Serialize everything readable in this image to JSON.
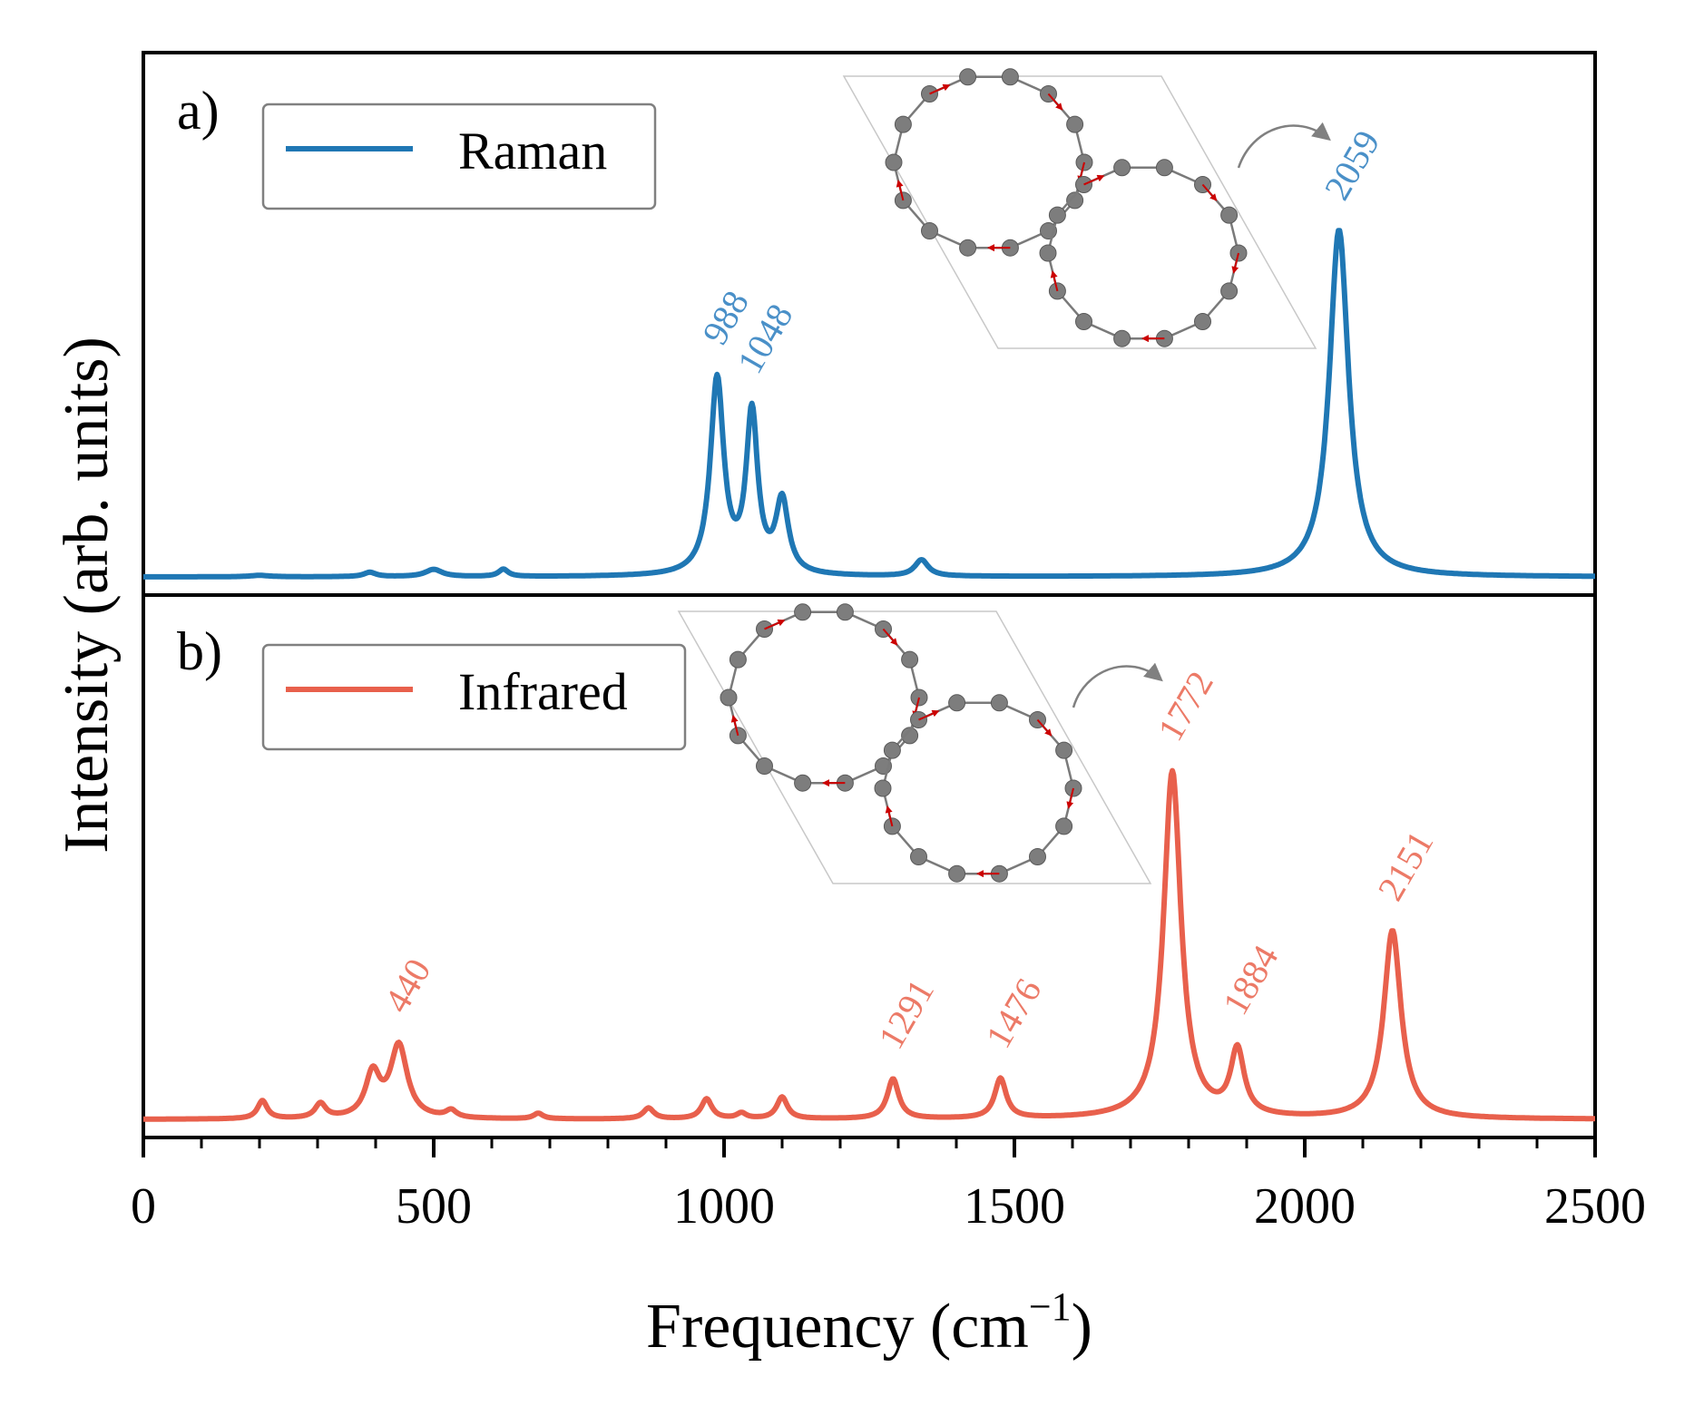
{
  "chart_data": {
    "type": "line",
    "xlabel": "Frequency (cm",
    "xlabel_sup": "−1",
    "xlabel_close": ")",
    "ylabel": "Intensity (arb. units)",
    "xlim": [
      0,
      2500
    ],
    "x_ticks": [
      0,
      500,
      1000,
      1500,
      2000,
      2500
    ],
    "x_tick_labels": [
      "0",
      "500",
      "1000",
      "1500",
      "2000",
      "2500"
    ],
    "x_minor_tick_step": 100,
    "panels": [
      {
        "panel_label": "a)",
        "legend_label": "Raman",
        "legend_position": "top-left",
        "color": "#1f77b4",
        "annotation_color": "#4a90c8",
        "baseline": 0.0,
        "ylim": [
          -0.05,
          1.45
        ],
        "peaks": [
          {
            "x": 200,
            "height": 0.004,
            "width": 40
          },
          {
            "x": 390,
            "height": 0.012,
            "width": 25
          },
          {
            "x": 500,
            "height": 0.02,
            "width": 35
          },
          {
            "x": 620,
            "height": 0.02,
            "width": 20
          },
          {
            "x": 988,
            "height": 0.54,
            "width": 28
          },
          {
            "x": 1048,
            "height": 0.44,
            "width": 24
          },
          {
            "x": 1100,
            "height": 0.2,
            "width": 26
          },
          {
            "x": 1340,
            "height": 0.045,
            "width": 28
          },
          {
            "x": 2059,
            "height": 0.96,
            "width": 40
          }
        ],
        "annotations": [
          {
            "x": 988,
            "label": "988"
          },
          {
            "x": 1048,
            "label": "1048"
          },
          {
            "x": 2059,
            "label": "2059"
          }
        ],
        "inset": "carbon-ring-structure"
      },
      {
        "panel_label": "b)",
        "legend_label": "Infrared",
        "legend_position": "top-left",
        "color": "#e8604c",
        "annotation_color": "#ec7a67",
        "baseline": 0.0,
        "ylim": [
          -0.05,
          1.45
        ],
        "peaks": [
          {
            "x": 205,
            "height": 0.05,
            "width": 20
          },
          {
            "x": 305,
            "height": 0.04,
            "width": 22
          },
          {
            "x": 395,
            "height": 0.12,
            "width": 30
          },
          {
            "x": 440,
            "height": 0.2,
            "width": 35
          },
          {
            "x": 530,
            "height": 0.02,
            "width": 22
          },
          {
            "x": 680,
            "height": 0.015,
            "width": 20
          },
          {
            "x": 870,
            "height": 0.03,
            "width": 22
          },
          {
            "x": 970,
            "height": 0.055,
            "width": 22
          },
          {
            "x": 1030,
            "height": 0.015,
            "width": 20
          },
          {
            "x": 1100,
            "height": 0.06,
            "width": 22
          },
          {
            "x": 1291,
            "height": 0.11,
            "width": 24
          },
          {
            "x": 1476,
            "height": 0.11,
            "width": 24
          },
          {
            "x": 1772,
            "height": 0.96,
            "width": 36
          },
          {
            "x": 1884,
            "height": 0.18,
            "width": 28
          },
          {
            "x": 2151,
            "height": 0.52,
            "width": 36
          }
        ],
        "annotations": [
          {
            "x": 440,
            "label": "440"
          },
          {
            "x": 1291,
            "label": "1291"
          },
          {
            "x": 1476,
            "label": "1476"
          },
          {
            "x": 1772,
            "label": "1772"
          },
          {
            "x": 1884,
            "label": "1884"
          },
          {
            "x": 2151,
            "label": "2151"
          }
        ],
        "inset": "carbon-ring-structure"
      }
    ]
  }
}
